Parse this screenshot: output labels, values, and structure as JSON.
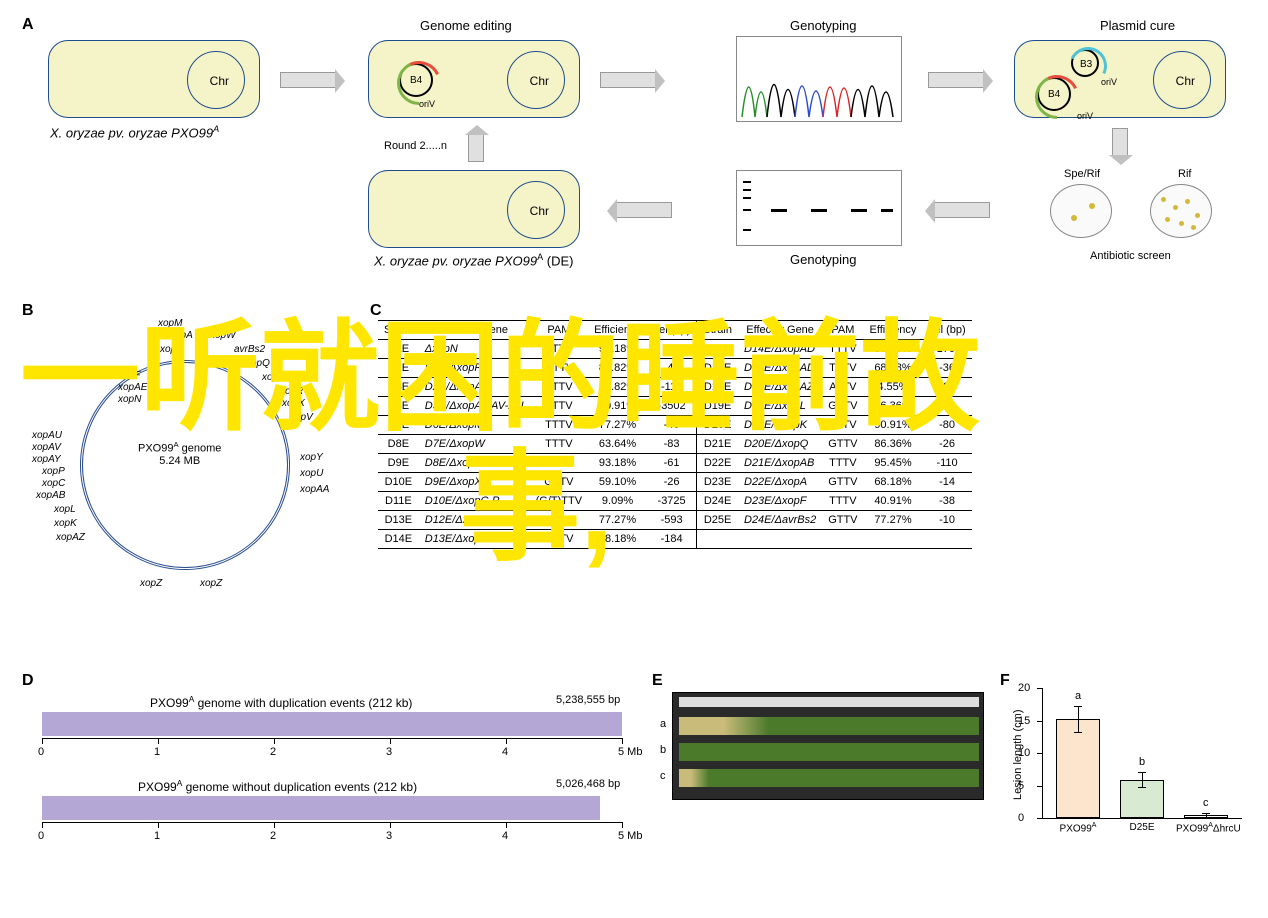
{
  "panels": {
    "A": "A",
    "B": "B",
    "C": "C",
    "D": "D",
    "E": "E",
    "F": "F"
  },
  "panelA": {
    "cell1_label": "X. oryzae pv. oryzae PXO99",
    "cell1_sup": "A",
    "chr": "Chr",
    "genome_editing": "Genome editing",
    "genotyping": "Genotyping",
    "plasmid_cure": "Plasmid cure",
    "antibiotic_screen": "Antibiotic screen",
    "spe_rif": "Spe/Rif",
    "rif": "Rif",
    "round": "Round 2.....n",
    "de_label": "X. oryzae pv. oryzae PXO99",
    "de_sup": "A",
    "de_suffix": " (DE)",
    "b4": "B4",
    "b3": "B3",
    "oriV": "oriV"
  },
  "panelB": {
    "title1": "PXO99",
    "title1_sup": "A",
    "title1_suffix": " genome",
    "title2": "5.24 MB",
    "genes_left_top": [
      "xopF",
      "xopAE",
      "xopN"
    ],
    "genes_top": [
      "xopM",
      "xopA",
      "xopP",
      "xopW",
      "avrBs2",
      "xopQ",
      "xopAD",
      "xopR",
      "xopX",
      "xopV"
    ],
    "genes_right": [
      "xopY",
      "xopU",
      "xopAA"
    ],
    "genes_left": [
      "xopAU",
      "xopAV",
      "xopAY",
      "xopP",
      "xopC",
      "xopAB",
      "xopL",
      "xopK",
      "xopAZ"
    ],
    "genes_bottom": [
      "xopZ",
      "xopZ"
    ]
  },
  "table": {
    "headers": [
      "Strain",
      "Effector Gene",
      "PAM",
      "Efficiency",
      "del (bp)"
    ],
    "rows": [
      [
        "D1E",
        "ΔxopN",
        "TTTV",
        "93.18%",
        "-47",
        "D15E",
        "D14E/ΔxopAD",
        "TTTV",
        "86.36%",
        "-1708"
      ],
      [
        "D2E",
        "D1E/ΔxopF",
        "GTTV",
        "81.82%",
        "-43",
        "D17E",
        "D16E/ΔxopAD",
        "TTTV",
        "68.18%",
        "-36"
      ],
      [
        "D3E",
        "D2E/ΔxopAE",
        "TTTV",
        "81.82%",
        "-116",
        "D18E",
        "D17E/ΔxopAZ",
        "ATTV",
        "4.55%",
        "-62"
      ],
      [
        "D4E",
        "D3E/ΔxopAY-AV-AU",
        "TTTV",
        "90.91%",
        "-3502",
        "D19E",
        "D18E/ΔxopL",
        "GTTV",
        "86.36%",
        "-31"
      ],
      [
        "D7E",
        "D6E/ΔxopM",
        "TTTV",
        "77.27%",
        "-40",
        "D20E",
        "D19E/ΔxopK",
        "TTTV",
        "90.91%",
        "-80"
      ],
      [
        "D8E",
        "D7E/ΔxopW",
        "TTTV",
        "63.64%",
        "-83",
        "D21E",
        "D20E/ΔxopQ",
        "GTTV",
        "86.36%",
        "-26"
      ],
      [
        "D9E",
        "D8E/ΔxopZ",
        "TTTV",
        "93.18%",
        "-61",
        "D22E",
        "D21E/ΔxopAB",
        "TTTV",
        "95.45%",
        "-110"
      ],
      [
        "D10E",
        "D9E/ΔxopX",
        "GTTV",
        "59.10%",
        "-26",
        "D23E",
        "D22E/ΔxopA",
        "GTTV",
        "68.18%",
        "-14"
      ],
      [
        "D11E",
        "D10E/ΔxopC-P",
        "(G/T)TTV",
        "9.09%",
        "-3725",
        "D24E",
        "D23E/ΔxopF",
        "TTTV",
        "40.91%",
        "-38"
      ],
      [
        "D13E",
        "D12E/ΔxopY",
        "GTTV",
        "77.27%",
        "-593",
        "D25E",
        "D24E/ΔavrBs2",
        "GTTV",
        "77.27%",
        "-10"
      ],
      [
        "D14E",
        "D13E/ΔxopR",
        "GTTV",
        "68.18%",
        "-184",
        "",
        "",
        "",
        "",
        ""
      ]
    ]
  },
  "panelD": {
    "title1": "PXO99",
    "title1_sup": "A",
    "title1_rest": " genome with duplication events (212 kb)",
    "bp1": "5,238,555 bp",
    "title2": "PXO99",
    "title2_sup": "A",
    "title2_rest": " genome without duplication events (212 kb)",
    "bp2": "5,026,468 bp",
    "ticks": [
      "0",
      "1",
      "2",
      "3",
      "4",
      "5 Mb"
    ]
  },
  "panelE": {
    "labels": [
      "a",
      "b",
      "c"
    ]
  },
  "panelF": {
    "ylabel": "Lesion length (cm)",
    "yticks": [
      "0",
      "5",
      "10",
      "15",
      "20"
    ],
    "bars": [
      {
        "label": "PXO99",
        "sup": "A",
        "value": 15.3,
        "color": "#fce5cd",
        "sig": "a",
        "err": 2.0
      },
      {
        "label": "D25E",
        "sup": "",
        "value": 5.9,
        "color": "#d9ead3",
        "sig": "b",
        "err": 1.2
      },
      {
        "label": "PXO99",
        "sup": "A",
        "suffix": "ΔhrcU",
        "value": 0.4,
        "color": "#ffffff",
        "sig": "c",
        "err": 0.3
      }
    ]
  },
  "overlay": {
    "line1": "一听就困的睡前故",
    "line2": "事,"
  }
}
